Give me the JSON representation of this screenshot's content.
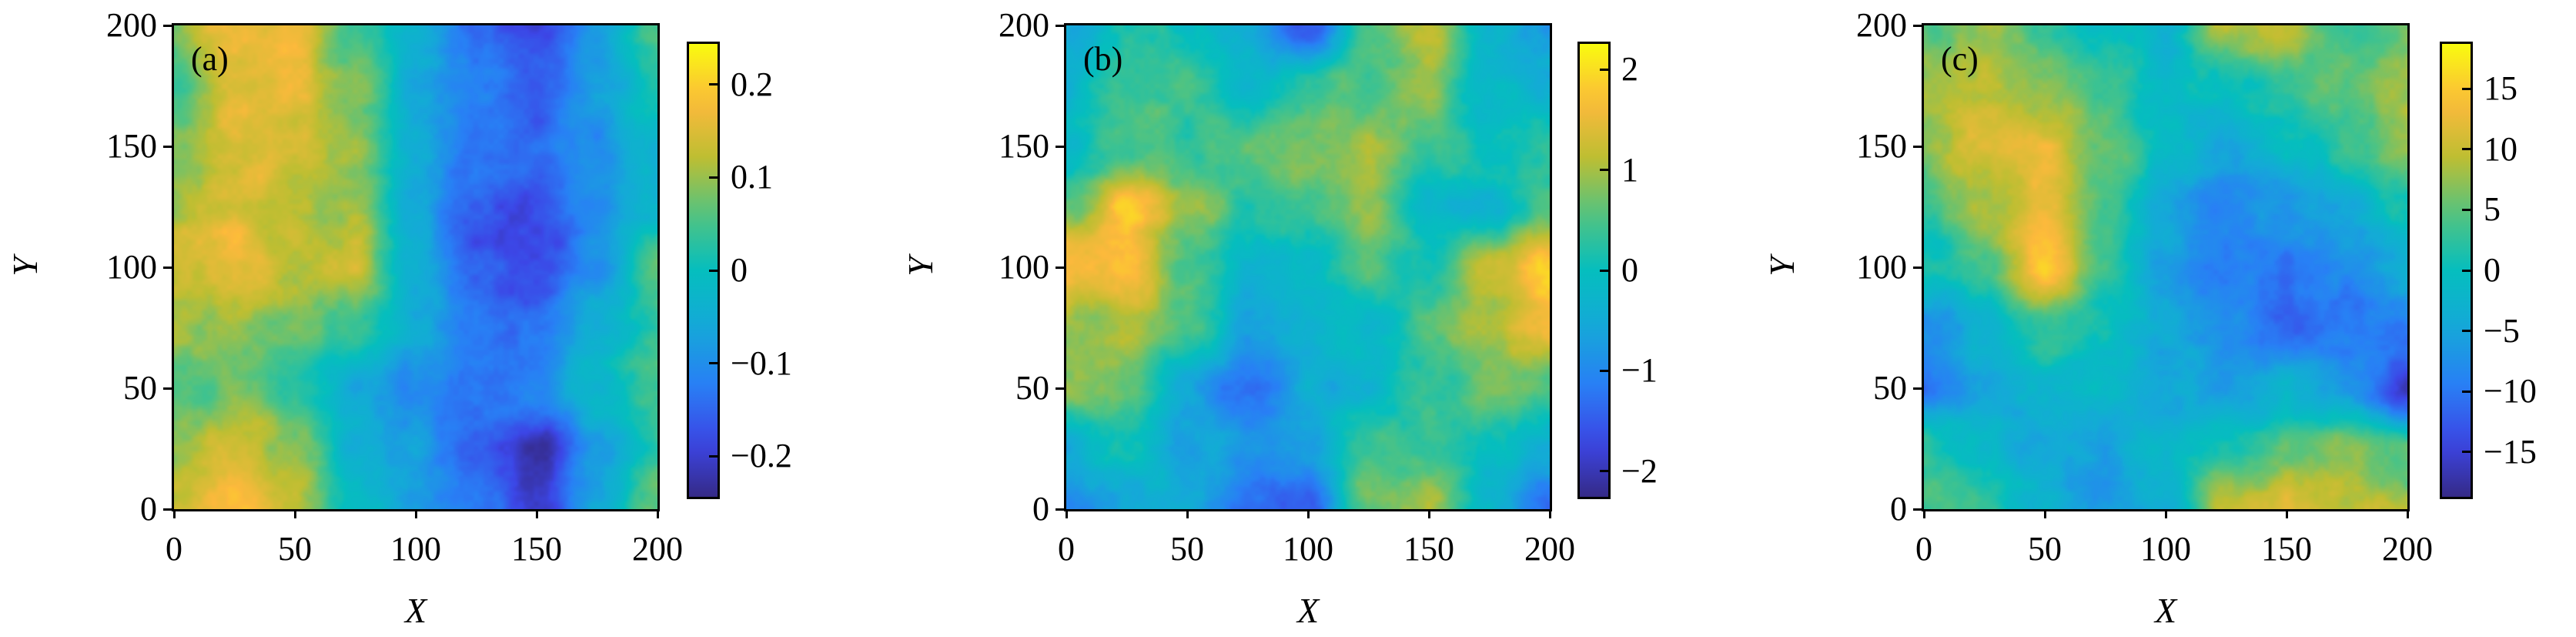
{
  "chart_data": [
    {
      "type": "heatmap",
      "panel_label": "(a)",
      "xlabel": "X",
      "ylabel": "Y",
      "xlim": [
        0,
        200
      ],
      "ylim": [
        0,
        200
      ],
      "xticks": [
        "0",
        "50",
        "100",
        "150",
        "200"
      ],
      "yticks": [
        "0",
        "50",
        "100",
        "150",
        "200"
      ],
      "colorbar": {
        "range": [
          -0.246,
          0.246
        ],
        "ticks": [
          0.2,
          0.1,
          0,
          -0.1,
          -0.2
        ],
        "tick_labels": [
          "0.2",
          "0.1",
          "0",
          "−0.1",
          "−0.2"
        ]
      },
      "grid_x": [
        0,
        25,
        50,
        75,
        100,
        125,
        150,
        175,
        200
      ],
      "grid_y_top_to_bottom": [
        200,
        175,
        150,
        125,
        100,
        75,
        50,
        25,
        0
      ],
      "values": [
        [
          0.1,
          0.17,
          0.16,
          0.05,
          -0.05,
          -0.15,
          -0.2,
          -0.08,
          0.05
        ],
        [
          0.05,
          0.15,
          0.16,
          0.08,
          -0.05,
          -0.12,
          -0.16,
          -0.08,
          0.02
        ],
        [
          0.08,
          0.15,
          0.14,
          0.1,
          -0.05,
          -0.13,
          -0.15,
          -0.1,
          -0.03
        ],
        [
          0.12,
          0.16,
          0.12,
          0.1,
          -0.06,
          -0.17,
          -0.18,
          -0.1,
          -0.02
        ],
        [
          0.14,
          0.17,
          0.12,
          0.13,
          -0.05,
          -0.17,
          -0.19,
          -0.1,
          0.05
        ],
        [
          0.1,
          0.1,
          0.08,
          0.03,
          -0.05,
          -0.12,
          -0.14,
          -0.05,
          0.02
        ],
        [
          0.05,
          0.08,
          0.02,
          -0.05,
          -0.1,
          -0.12,
          -0.12,
          -0.02,
          0.06
        ],
        [
          0.1,
          0.15,
          0.1,
          -0.05,
          -0.08,
          -0.15,
          -0.22,
          -0.08,
          0.03
        ],
        [
          0.12,
          0.18,
          0.12,
          -0.02,
          -0.08,
          -0.12,
          -0.22,
          -0.08,
          0.08
        ]
      ]
    },
    {
      "type": "heatmap",
      "panel_label": "(b)",
      "xlabel": "X",
      "ylabel": "Y",
      "xlim": [
        0,
        200
      ],
      "ylim": [
        0,
        200
      ],
      "xticks": [
        "0",
        "50",
        "100",
        "150",
        "200"
      ],
      "yticks": [
        "0",
        "50",
        "100",
        "150",
        "200"
      ],
      "colorbar": {
        "range": [
          -2.28,
          2.28
        ],
        "ticks": [
          2,
          1,
          0,
          -1,
          -2
        ],
        "tick_labels": [
          "2",
          "1",
          "0",
          "−1",
          "−2"
        ]
      },
      "grid_x": [
        0,
        25,
        50,
        75,
        100,
        125,
        150,
        175,
        200
      ],
      "grid_y_top_to_bottom": [
        200,
        175,
        150,
        125,
        100,
        75,
        50,
        25,
        0
      ],
      "values": [
        [
          -0.5,
          0.2,
          0.0,
          -0.5,
          -1.5,
          0.5,
          1.2,
          -0.3,
          -0.8
        ],
        [
          -0.3,
          0.3,
          0.5,
          -0.2,
          0.3,
          0.6,
          0.8,
          -0.2,
          -0.5
        ],
        [
          -0.2,
          0.5,
          0.4,
          0.6,
          0.8,
          0.9,
          0.5,
          0.0,
          0.2
        ],
        [
          0.6,
          1.8,
          1.0,
          0.3,
          0.5,
          1.0,
          -0.2,
          -0.3,
          0.5
        ],
        [
          1.7,
          1.7,
          0.6,
          -0.3,
          -0.2,
          0.5,
          0.0,
          1.2,
          2.0
        ],
        [
          0.8,
          1.0,
          0.4,
          -0.6,
          -0.3,
          -0.2,
          0.5,
          1.0,
          1.5
        ],
        [
          0.8,
          0.6,
          -0.6,
          -1.3,
          -0.5,
          -0.3,
          0.3,
          0.7,
          0.4
        ],
        [
          -0.5,
          0.0,
          -0.6,
          -0.8,
          -0.6,
          0.5,
          0.3,
          0.0,
          -0.6
        ],
        [
          -1.0,
          -0.6,
          -0.5,
          -1.2,
          -1.6,
          0.8,
          1.0,
          -0.3,
          -1.4
        ]
      ]
    },
    {
      "type": "heatmap",
      "panel_label": "(c)",
      "xlabel": "X",
      "ylabel": "Y",
      "xlim": [
        0,
        200
      ],
      "ylim": [
        0,
        200
      ],
      "xticks": [
        "0",
        "50",
        "100",
        "150",
        "200"
      ],
      "yticks": [
        "0",
        "50",
        "100",
        "150",
        "200"
      ],
      "colorbar": {
        "range": [
          -18.9,
          18.9
        ],
        "ticks": [
          15,
          10,
          5,
          0,
          -5,
          -10,
          -15
        ],
        "tick_labels": [
          "15",
          "10",
          "5",
          "0",
          "−5",
          "−10",
          "−15"
        ]
      },
      "grid_x": [
        0,
        25,
        50,
        75,
        100,
        125,
        150,
        175,
        200
      ],
      "grid_y_top_to_bottom": [
        200,
        175,
        150,
        125,
        100,
        75,
        50,
        25,
        0
      ],
      "values": [
        [
          5,
          8,
          3,
          -1,
          -2,
          8,
          10,
          3,
          6
        ],
        [
          9,
          10,
          8,
          3,
          -2,
          0,
          3,
          5,
          8
        ],
        [
          6,
          12,
          12,
          6,
          -1,
          -4,
          -1,
          2,
          8
        ],
        [
          3,
          8,
          13,
          4,
          -4,
          -10,
          -6,
          -5,
          2
        ],
        [
          0,
          4,
          15,
          2,
          -6,
          -10,
          -10,
          -8,
          -4
        ],
        [
          -8,
          -2,
          3,
          0,
          -4,
          -7,
          -12,
          -10,
          -10
        ],
        [
          -10,
          -5,
          -2,
          -2,
          -5,
          -6,
          -3,
          -6,
          -15
        ],
        [
          2,
          -1,
          -5,
          -6,
          -1,
          2,
          4,
          6,
          4
        ],
        [
          5,
          3,
          -3,
          -7,
          -3,
          10,
          12,
          10,
          8
        ]
      ]
    }
  ],
  "colormap": "parula"
}
